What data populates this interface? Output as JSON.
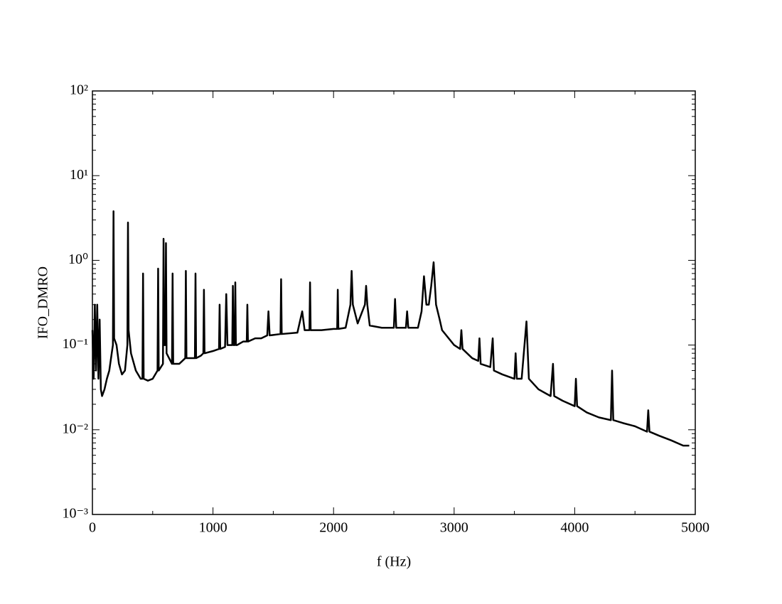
{
  "chart_data": {
    "type": "line",
    "xlabel": "f (Hz)",
    "ylabel": "IFO_DMRO",
    "log_y": true,
    "color": "#000000",
    "xlim": [
      0,
      5000
    ],
    "xticks": [
      0,
      1000,
      2000,
      3000,
      4000,
      5000
    ],
    "ylim": [
      0.001,
      100
    ],
    "yticks": [
      {
        "value": 0.001,
        "label": "10⁻³"
      },
      {
        "value": 0.01,
        "label": "10⁻²"
      },
      {
        "value": 0.1,
        "label": "10⁻¹"
      },
      {
        "value": 1,
        "label": "10⁰"
      },
      {
        "value": 10,
        "label": "10¹"
      },
      {
        "value": 100,
        "label": "10²"
      }
    ],
    "x": [
      0,
      10,
      20,
      30,
      40,
      50,
      60,
      70,
      80,
      100,
      120,
      140,
      160,
      170,
      175,
      180,
      200,
      220,
      245,
      270,
      290,
      295,
      300,
      320,
      360,
      400,
      415,
      420,
      425,
      460,
      500,
      540,
      545,
      550,
      585,
      590,
      595,
      605,
      610,
      615,
      660,
      665,
      670,
      720,
      770,
      775,
      780,
      850,
      855,
      860,
      900,
      920,
      925,
      930,
      1000,
      1050,
      1055,
      1060,
      1100,
      1110,
      1120,
      1160,
      1165,
      1170,
      1180,
      1185,
      1190,
      1200,
      1250,
      1280,
      1285,
      1290,
      1350,
      1400,
      1450,
      1460,
      1470,
      1560,
      1565,
      1570,
      1700,
      1740,
      1760,
      1800,
      1805,
      1810,
      1900,
      2000,
      2030,
      2035,
      2040,
      2100,
      2140,
      2150,
      2160,
      2200,
      2260,
      2270,
      2280,
      2300,
      2400,
      2500,
      2510,
      2520,
      2600,
      2610,
      2620,
      2700,
      2730,
      2750,
      2770,
      2790,
      2810,
      2830,
      2850,
      2880,
      2900,
      3000,
      3050,
      3060,
      3070,
      3150,
      3200,
      3210,
      3220,
      3300,
      3320,
      3330,
      3400,
      3500,
      3510,
      3520,
      3560,
      3600,
      3620,
      3700,
      3800,
      3820,
      3830,
      3900,
      4000,
      4010,
      4020,
      4100,
      4200,
      4300,
      4310,
      4320,
      4400,
      4500,
      4600,
      4610,
      4620,
      4700,
      4800,
      4900,
      4950
    ],
    "values": [
      0.15,
      0.04,
      0.3,
      0.05,
      0.3,
      0.04,
      0.2,
      0.03,
      0.025,
      0.03,
      0.04,
      0.05,
      0.08,
      0.1,
      3.8,
      0.12,
      0.1,
      0.06,
      0.045,
      0.05,
      0.1,
      2.8,
      0.15,
      0.08,
      0.05,
      0.04,
      0.04,
      0.7,
      0.04,
      0.038,
      0.04,
      0.05,
      0.8,
      0.05,
      0.06,
      1.8,
      0.1,
      0.1,
      1.6,
      0.08,
      0.06,
      0.7,
      0.06,
      0.06,
      0.07,
      0.75,
      0.07,
      0.07,
      0.7,
      0.07,
      0.075,
      0.08,
      0.45,
      0.08,
      0.085,
      0.09,
      0.3,
      0.09,
      0.095,
      0.4,
      0.1,
      0.1,
      0.5,
      0.1,
      0.1,
      0.55,
      0.1,
      0.1,
      0.11,
      0.11,
      0.3,
      0.11,
      0.12,
      0.12,
      0.13,
      0.25,
      0.13,
      0.135,
      0.6,
      0.135,
      0.14,
      0.25,
      0.15,
      0.15,
      0.55,
      0.15,
      0.15,
      0.155,
      0.155,
      0.45,
      0.155,
      0.16,
      0.3,
      0.75,
      0.3,
      0.18,
      0.3,
      0.5,
      0.3,
      0.17,
      0.16,
      0.16,
      0.35,
      0.16,
      0.16,
      0.25,
      0.16,
      0.16,
      0.25,
      0.65,
      0.3,
      0.3,
      0.5,
      0.95,
      0.3,
      0.2,
      0.15,
      0.1,
      0.09,
      0.15,
      0.09,
      0.07,
      0.065,
      0.12,
      0.06,
      0.055,
      0.12,
      0.05,
      0.045,
      0.04,
      0.08,
      0.04,
      0.04,
      0.19,
      0.04,
      0.03,
      0.025,
      0.06,
      0.025,
      0.022,
      0.019,
      0.04,
      0.019,
      0.016,
      0.014,
      0.013,
      0.05,
      0.013,
      0.012,
      0.011,
      0.0095,
      0.017,
      0.0095,
      0.0085,
      0.0075,
      0.0065,
      0.0065
    ]
  }
}
